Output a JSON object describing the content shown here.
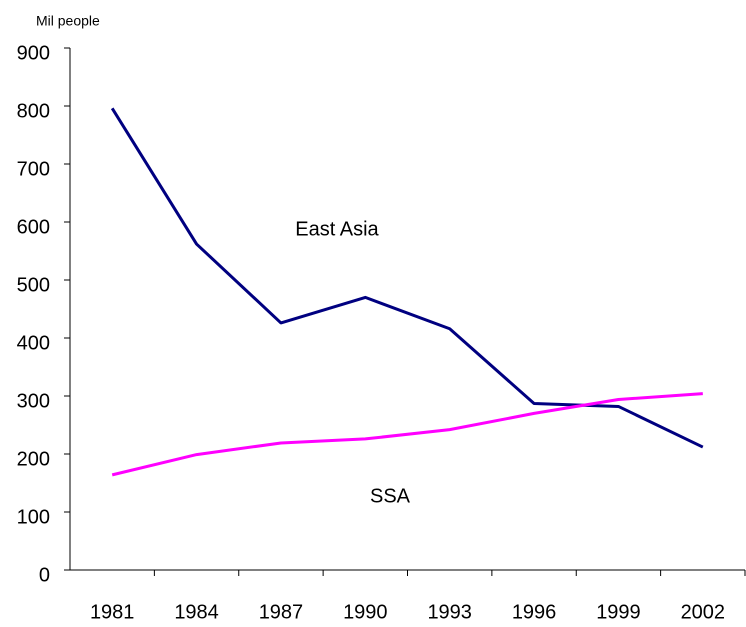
{
  "chart_data": {
    "type": "line",
    "y_axis_label": "Mil people",
    "categories": [
      "1981",
      "1984",
      "1987",
      "1990",
      "1993",
      "1996",
      "1999",
      "2002"
    ],
    "series": [
      {
        "name": "East Asia",
        "color": "#000080",
        "values": [
          796,
          562,
          426,
          470,
          416,
          287,
          282,
          212
        ]
      },
      {
        "name": "SSA",
        "color": "#ff00ff",
        "values": [
          164,
          199,
          219,
          226,
          242,
          270,
          294,
          304
        ]
      }
    ],
    "ylim": [
      0,
      900
    ],
    "yticks": [
      0,
      100,
      200,
      300,
      400,
      500,
      600,
      700,
      800,
      900
    ],
    "grid": false
  }
}
